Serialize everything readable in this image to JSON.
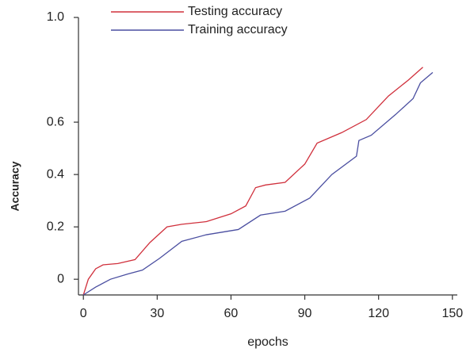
{
  "chart_data": {
    "type": "line",
    "xlabel": "epochs",
    "ylabel": "Accuracy",
    "xlim": [
      -2,
      152
    ],
    "ylim": [
      -0.06,
      1.0
    ],
    "xticks": [
      0,
      30,
      60,
      90,
      120,
      150
    ],
    "yticks": [
      0,
      0.2,
      0.4,
      0.6,
      {
        "value": 1,
        "label": "1.0"
      }
    ],
    "legend": "upper left",
    "series": [
      {
        "name": "Testing accuracy",
        "color": "#d0303c",
        "x": [
          0,
          2,
          5,
          8,
          14,
          21,
          27,
          34,
          40,
          50,
          60,
          66,
          70,
          74,
          82,
          90,
          95,
          105,
          115,
          124,
          132,
          138
        ],
        "values": [
          -0.06,
          0,
          0.04,
          0.055,
          0.06,
          0.075,
          0.14,
          0.2,
          0.21,
          0.22,
          0.25,
          0.28,
          0.35,
          0.36,
          0.37,
          0.44,
          0.52,
          0.56,
          0.61,
          0.7,
          0.76,
          0.81
        ]
      },
      {
        "name": "Training accuracy",
        "color": "#4a4ea0",
        "x": [
          0,
          5,
          11,
          18,
          24,
          31,
          40,
          50,
          63,
          72,
          82,
          92,
          101,
          111,
          112,
          117,
          127,
          134,
          137,
          142
        ],
        "values": [
          -0.06,
          -0.03,
          0,
          0.02,
          0.035,
          0.08,
          0.145,
          0.17,
          0.19,
          0.245,
          0.26,
          0.31,
          0.4,
          0.47,
          0.53,
          0.55,
          0.63,
          0.69,
          0.75,
          0.79
        ]
      }
    ]
  }
}
